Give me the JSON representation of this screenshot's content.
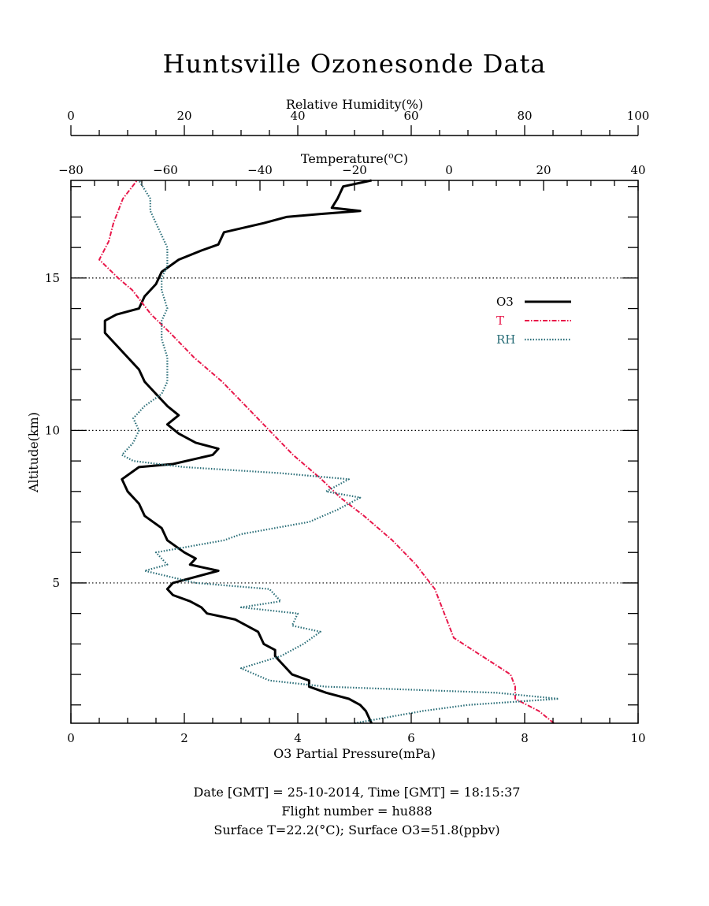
{
  "title": "Huntsville Ozonesonde Data",
  "footer": {
    "line1": "Date [GMT] = 25-10-2014,  Time [GMT] = 18:15:37",
    "line2": "Flight number = hu888",
    "line3": "Surface T=22.2(°C); Surface O3=51.8(ppbv)"
  },
  "colors": {
    "o3": "#000000",
    "t": "#e8174a",
    "rh": "#2a6e78",
    "grid": "#000000"
  },
  "chart_data": {
    "type": "line",
    "title": "Huntsville Ozonesonde Data",
    "ylabel": "Altitude(km)",
    "ylim": [
      0.4,
      18.2
    ],
    "yticks": [
      5,
      10,
      15
    ],
    "dotted_gridlines_y": [
      5,
      10,
      15
    ],
    "legend_position": "top-right",
    "axes": {
      "o3": {
        "label": "O3 Partial Pressure(mPa)",
        "range": [
          0,
          10
        ],
        "ticks": [
          0,
          2,
          4,
          6,
          8,
          10
        ],
        "position": "bottom"
      },
      "temperature": {
        "label": "Temperature(°C)",
        "range": [
          -80,
          40
        ],
        "ticks": [
          -80,
          -60,
          -40,
          -20,
          0,
          20,
          40
        ],
        "position": "top-inner"
      },
      "rh": {
        "label": "Relative Humidity(%)",
        "range": [
          0,
          100
        ],
        "ticks": [
          0,
          20,
          40,
          60,
          80,
          100
        ],
        "position": "top-outer"
      }
    },
    "series": [
      {
        "name": "O3",
        "axis": "o3",
        "style": "solid",
        "points": [
          [
            5.3,
            0.4
          ],
          [
            5.2,
            0.8
          ],
          [
            5.1,
            1.0
          ],
          [
            4.9,
            1.2
          ],
          [
            4.5,
            1.4
          ],
          [
            4.2,
            1.6
          ],
          [
            4.2,
            1.8
          ],
          [
            3.9,
            2.0
          ],
          [
            3.7,
            2.4
          ],
          [
            3.6,
            2.6
          ],
          [
            3.6,
            2.8
          ],
          [
            3.4,
            3.0
          ],
          [
            3.3,
            3.4
          ],
          [
            2.9,
            3.8
          ],
          [
            2.4,
            4.0
          ],
          [
            2.3,
            4.2
          ],
          [
            2.1,
            4.4
          ],
          [
            1.8,
            4.6
          ],
          [
            1.7,
            4.8
          ],
          [
            1.8,
            5.0
          ],
          [
            2.6,
            5.4
          ],
          [
            2.1,
            5.6
          ],
          [
            2.2,
            5.8
          ],
          [
            2.0,
            6.0
          ],
          [
            1.7,
            6.4
          ],
          [
            1.6,
            6.8
          ],
          [
            1.3,
            7.2
          ],
          [
            1.2,
            7.6
          ],
          [
            1.0,
            8.0
          ],
          [
            0.9,
            8.4
          ],
          [
            1.2,
            8.8
          ],
          [
            1.8,
            8.9
          ],
          [
            2.5,
            9.2
          ],
          [
            2.6,
            9.4
          ],
          [
            2.2,
            9.6
          ],
          [
            1.9,
            9.9
          ],
          [
            1.7,
            10.2
          ],
          [
            1.9,
            10.5
          ],
          [
            1.7,
            10.8
          ],
          [
            1.5,
            11.2
          ],
          [
            1.3,
            11.6
          ],
          [
            1.2,
            12.0
          ],
          [
            1.0,
            12.4
          ],
          [
            0.8,
            12.8
          ],
          [
            0.6,
            13.2
          ],
          [
            0.6,
            13.6
          ],
          [
            0.8,
            13.8
          ],
          [
            1.2,
            14.0
          ],
          [
            1.3,
            14.4
          ],
          [
            1.5,
            14.8
          ],
          [
            1.6,
            15.2
          ],
          [
            1.9,
            15.6
          ],
          [
            2.3,
            15.9
          ],
          [
            2.6,
            16.1
          ],
          [
            2.7,
            16.5
          ],
          [
            3.4,
            16.8
          ],
          [
            3.8,
            17.0
          ],
          [
            4.4,
            17.1
          ],
          [
            5.1,
            17.2
          ],
          [
            4.6,
            17.3
          ],
          [
            4.7,
            17.6
          ],
          [
            4.8,
            18.0
          ],
          [
            5.3,
            18.2
          ]
        ]
      },
      {
        "name": "T",
        "axis": "temperature",
        "style": "dash-dot",
        "points": [
          [
            22.2,
            0.4
          ],
          [
            19,
            0.8
          ],
          [
            14,
            1.2
          ],
          [
            14,
            1.6
          ],
          [
            13,
            2.0
          ],
          [
            7,
            2.6
          ],
          [
            1,
            3.2
          ],
          [
            0,
            3.6
          ],
          [
            -1,
            4.0
          ],
          [
            -2,
            4.4
          ],
          [
            -3,
            4.8
          ],
          [
            -4,
            5.0
          ],
          [
            -7,
            5.6
          ],
          [
            -12,
            6.4
          ],
          [
            -18,
            7.2
          ],
          [
            -23,
            7.8
          ],
          [
            -27,
            8.4
          ],
          [
            -33,
            9.2
          ],
          [
            -38,
            10.0
          ],
          [
            -43,
            10.8
          ],
          [
            -48,
            11.6
          ],
          [
            -54,
            12.4
          ],
          [
            -59,
            13.2
          ],
          [
            -63,
            13.8
          ],
          [
            -65,
            14.2
          ],
          [
            -67,
            14.6
          ],
          [
            -70,
            15.0
          ],
          [
            -74,
            15.6
          ],
          [
            -72,
            16.2
          ],
          [
            -71,
            16.8
          ],
          [
            -70,
            17.2
          ],
          [
            -69,
            17.6
          ],
          [
            -66,
            18.2
          ]
        ]
      },
      {
        "name": "RH",
        "axis": "rh",
        "style": "dotted",
        "points": [
          [
            50,
            0.4
          ],
          [
            62,
            0.8
          ],
          [
            70,
            1.0
          ],
          [
            86,
            1.2
          ],
          [
            75,
            1.4
          ],
          [
            45,
            1.6
          ],
          [
            35,
            1.8
          ],
          [
            30,
            2.2
          ],
          [
            37,
            2.6
          ],
          [
            41,
            3.0
          ],
          [
            44,
            3.4
          ],
          [
            39,
            3.6
          ],
          [
            40,
            4.0
          ],
          [
            30,
            4.2
          ],
          [
            37,
            4.4
          ],
          [
            35,
            4.8
          ],
          [
            22,
            5.0
          ],
          [
            13,
            5.4
          ],
          [
            17,
            5.6
          ],
          [
            15,
            6.0
          ],
          [
            27,
            6.4
          ],
          [
            30,
            6.6
          ],
          [
            42,
            7.0
          ],
          [
            47,
            7.4
          ],
          [
            51,
            7.8
          ],
          [
            45,
            8.0
          ],
          [
            49,
            8.4
          ],
          [
            37,
            8.6
          ],
          [
            20,
            8.8
          ],
          [
            11,
            9.0
          ],
          [
            9,
            9.2
          ],
          [
            11,
            9.6
          ],
          [
            12,
            10.0
          ],
          [
            11,
            10.4
          ],
          [
            13,
            10.8
          ],
          [
            16,
            11.2
          ],
          [
            17,
            11.6
          ],
          [
            17,
            12.4
          ],
          [
            16,
            13.0
          ],
          [
            16,
            13.6
          ],
          [
            17,
            14.0
          ],
          [
            16,
            14.6
          ],
          [
            16,
            15.0
          ],
          [
            17,
            15.4
          ],
          [
            17,
            16.0
          ],
          [
            16,
            16.4
          ],
          [
            14,
            17.2
          ],
          [
            14,
            17.6
          ],
          [
            12,
            18.2
          ]
        ]
      }
    ]
  }
}
